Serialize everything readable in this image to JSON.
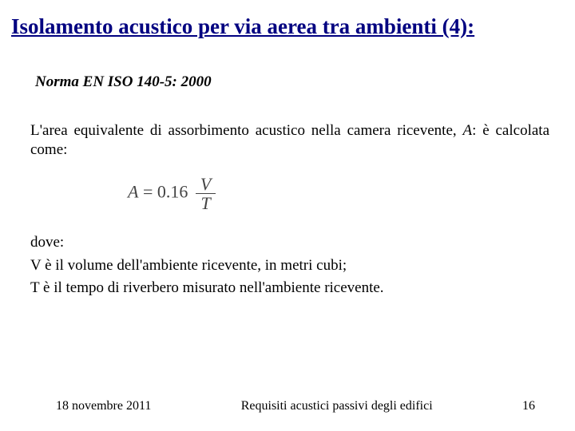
{
  "title": "Isolamento acustico per via aerea tra ambienti (4):",
  "subtitle": "Norma EN ISO 140-5: 2000",
  "paragraph1_a": "L'area equivalente di assorbimento acustico nella camera ricevente, ",
  "paragraph1_var": "A",
  "paragraph1_b": ": è calcolata come:",
  "formula": {
    "lhs_var": "A",
    "eq": " = ",
    "coef": "0.16",
    "num": "V",
    "den": "T"
  },
  "dove": {
    "label": "dove:",
    "line1": "V è il volume dell'ambiente ricevente, in metri cubi;",
    "line2": "T è il tempo di riverbero misurato nell'ambiente ricevente."
  },
  "footer": {
    "date": "18 novembre 2011",
    "center": "Requisiti acustici passivi degli edifici",
    "page": "16"
  },
  "colors": {
    "title": "#000080",
    "text": "#000000",
    "formula": "#444444",
    "background": "#ffffff"
  },
  "fonts": {
    "family": "Times New Roman",
    "title_size_pt": 20,
    "body_size_pt": 14,
    "footer_size_pt": 12
  }
}
